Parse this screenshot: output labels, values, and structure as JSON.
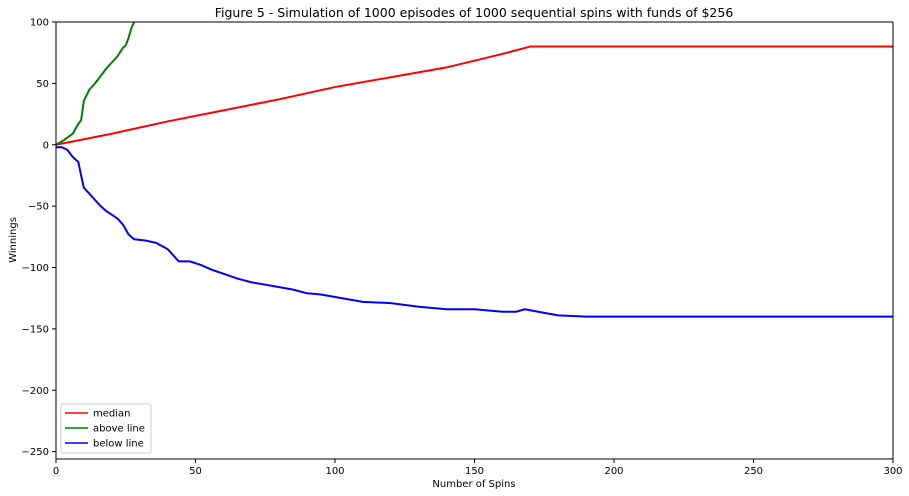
{
  "chart_data": {
    "type": "line",
    "title": "Figure 5 - Simulation of 1000 episodes of 1000 sequential spins with funds of $256",
    "xlabel": "Number of Spins",
    "ylabel": "Winnings",
    "xlim": [
      0,
      300
    ],
    "ylim": [
      -256,
      100
    ],
    "xticks": [
      0,
      50,
      100,
      150,
      200,
      250,
      300
    ],
    "yticks": [
      -250,
      -200,
      -150,
      -100,
      -50,
      0,
      50,
      100
    ],
    "grid": false,
    "legend": "lower-left",
    "series": [
      {
        "name": "median",
        "color": "#ff0000",
        "points": [
          [
            0,
            0
          ],
          [
            20,
            9
          ],
          [
            40,
            19
          ],
          [
            60,
            28
          ],
          [
            80,
            37
          ],
          [
            100,
            47
          ],
          [
            120,
            55
          ],
          [
            140,
            63
          ],
          [
            160,
            74
          ],
          [
            170,
            80
          ],
          [
            300,
            80
          ]
        ]
      },
      {
        "name": "above line",
        "color": "#008000",
        "points": [
          [
            0,
            0
          ],
          [
            3,
            4
          ],
          [
            6,
            9
          ],
          [
            8,
            17
          ],
          [
            9,
            20
          ],
          [
            10,
            36
          ],
          [
            12,
            45
          ],
          [
            14,
            50
          ],
          [
            16,
            56
          ],
          [
            18,
            62
          ],
          [
            20,
            67
          ],
          [
            22,
            72
          ],
          [
            24,
            79
          ],
          [
            25,
            81
          ],
          [
            26,
            87
          ],
          [
            27,
            95
          ],
          [
            28,
            100
          ]
        ]
      },
      {
        "name": "below line",
        "color": "#0000ff",
        "points": [
          [
            0,
            -2
          ],
          [
            2,
            -2
          ],
          [
            4,
            -4
          ],
          [
            6,
            -10
          ],
          [
            8,
            -14
          ],
          [
            9,
            -25
          ],
          [
            10,
            -35
          ],
          [
            12,
            -40
          ],
          [
            14,
            -45
          ],
          [
            16,
            -50
          ],
          [
            18,
            -54
          ],
          [
            20,
            -57
          ],
          [
            22,
            -60
          ],
          [
            24,
            -65
          ],
          [
            26,
            -73
          ],
          [
            28,
            -77
          ],
          [
            32,
            -78
          ],
          [
            36,
            -80
          ],
          [
            40,
            -85
          ],
          [
            44,
            -95
          ],
          [
            48,
            -95
          ],
          [
            52,
            -98
          ],
          [
            56,
            -102
          ],
          [
            60,
            -105
          ],
          [
            65,
            -109
          ],
          [
            70,
            -112
          ],
          [
            75,
            -114
          ],
          [
            80,
            -116
          ],
          [
            85,
            -118
          ],
          [
            90,
            -121
          ],
          [
            95,
            -122
          ],
          [
            100,
            -124
          ],
          [
            110,
            -128
          ],
          [
            120,
            -129
          ],
          [
            130,
            -132
          ],
          [
            140,
            -134
          ],
          [
            150,
            -134
          ],
          [
            160,
            -136
          ],
          [
            165,
            -136
          ],
          [
            168,
            -134
          ],
          [
            175,
            -137
          ],
          [
            180,
            -139
          ],
          [
            190,
            -140
          ],
          [
            300,
            -140
          ]
        ]
      }
    ]
  }
}
